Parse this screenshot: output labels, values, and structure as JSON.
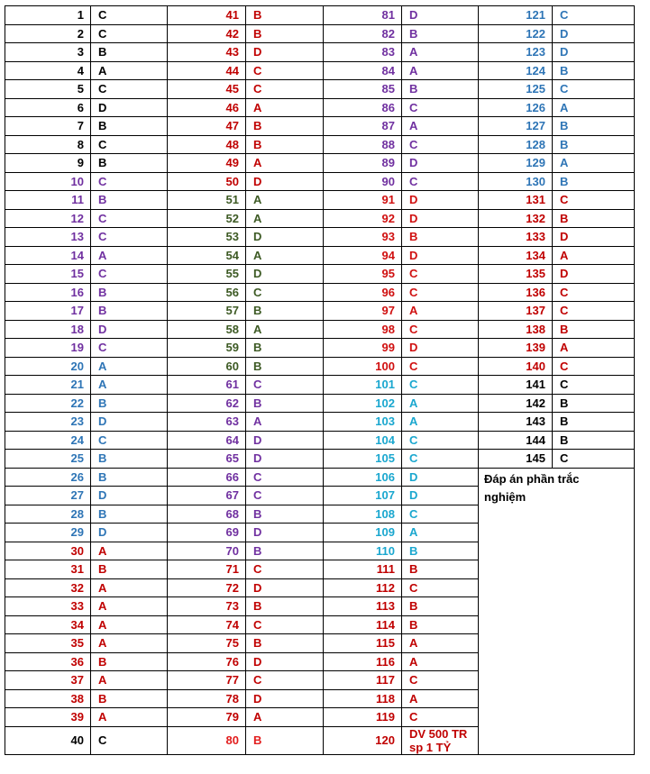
{
  "columns": [
    {
      "groups": [
        {
          "color": "#000000",
          "items": [
            [
              1,
              "C"
            ],
            [
              2,
              "C"
            ],
            [
              3,
              "B"
            ],
            [
              4,
              "A"
            ],
            [
              5,
              "C"
            ],
            [
              6,
              "D"
            ],
            [
              7,
              "B"
            ],
            [
              8,
              "C"
            ],
            [
              9,
              "B"
            ]
          ]
        },
        {
          "color": "#7030a0",
          "items": [
            [
              10,
              "C"
            ],
            [
              11,
              "B"
            ],
            [
              12,
              "C"
            ],
            [
              13,
              "C"
            ],
            [
              14,
              "A"
            ],
            [
              15,
              "C"
            ],
            [
              16,
              "B"
            ],
            [
              17,
              "B"
            ],
            [
              18,
              "D"
            ],
            [
              19,
              "C"
            ]
          ]
        },
        {
          "color": "#2e75b6",
          "items": [
            [
              20,
              "A"
            ],
            [
              21,
              "A"
            ],
            [
              22,
              "B"
            ],
            [
              23,
              "D"
            ],
            [
              24,
              "C"
            ],
            [
              25,
              "B"
            ],
            [
              26,
              "B"
            ],
            [
              27,
              "D"
            ],
            [
              28,
              "B"
            ],
            [
              29,
              "D"
            ]
          ]
        },
        {
          "color": "#c00000",
          "items": [
            [
              30,
              "A"
            ],
            [
              31,
              "B"
            ],
            [
              32,
              "A"
            ],
            [
              33,
              "A"
            ],
            [
              34,
              "A"
            ],
            [
              35,
              "A"
            ],
            [
              36,
              "B"
            ],
            [
              37,
              "A"
            ],
            [
              38,
              "B"
            ],
            [
              39,
              "A"
            ]
          ]
        },
        {
          "color": "#000000",
          "items": [
            [
              40,
              "C"
            ]
          ]
        }
      ]
    },
    {
      "groups": [
        {
          "color": "#c00000",
          "items": [
            [
              41,
              "B"
            ],
            [
              42,
              "B"
            ],
            [
              43,
              "D"
            ],
            [
              44,
              "C"
            ],
            [
              45,
              "C"
            ],
            [
              46,
              "A"
            ],
            [
              47,
              "B"
            ],
            [
              48,
              "B"
            ],
            [
              49,
              "A"
            ],
            [
              50,
              "D"
            ]
          ]
        },
        {
          "color": "#3d5a24",
          "items": [
            [
              51,
              "A"
            ],
            [
              52,
              "A"
            ],
            [
              53,
              "D"
            ],
            [
              54,
              "A"
            ],
            [
              55,
              "D"
            ],
            [
              56,
              "C"
            ],
            [
              57,
              "B"
            ],
            [
              58,
              "A"
            ],
            [
              59,
              "B"
            ],
            [
              60,
              "B"
            ]
          ]
        },
        {
          "color": "#7030a0",
          "items": [
            [
              61,
              "C"
            ],
            [
              62,
              "B"
            ],
            [
              63,
              "A"
            ],
            [
              64,
              "D"
            ],
            [
              65,
              "D"
            ],
            [
              66,
              "C"
            ],
            [
              67,
              "C"
            ],
            [
              68,
              "B"
            ],
            [
              69,
              "D"
            ],
            [
              70,
              "B"
            ]
          ]
        },
        {
          "color": "#c00000",
          "items": [
            [
              71,
              "C"
            ],
            [
              72,
              "D"
            ],
            [
              73,
              "B"
            ],
            [
              74,
              "C"
            ],
            [
              75,
              "B"
            ],
            [
              76,
              "D"
            ],
            [
              77,
              "C"
            ],
            [
              78,
              "D"
            ],
            [
              79,
              "A"
            ]
          ]
        },
        {
          "color": "#e21d1d",
          "items": [
            [
              80,
              "B"
            ]
          ]
        }
      ]
    },
    {
      "groups": [
        {
          "color": "#7030a0",
          "items": [
            [
              81,
              "D"
            ],
            [
              82,
              "B"
            ],
            [
              83,
              "A"
            ],
            [
              84,
              "A"
            ],
            [
              85,
              "B"
            ],
            [
              86,
              "C"
            ],
            [
              87,
              "A"
            ],
            [
              88,
              "C"
            ],
            [
              89,
              "D"
            ],
            [
              90,
              "C"
            ]
          ]
        },
        {
          "color": "#d01010",
          "items": [
            [
              91,
              "D"
            ],
            [
              92,
              "D"
            ],
            [
              93,
              "B"
            ],
            [
              94,
              "D"
            ],
            [
              95,
              "C"
            ],
            [
              96,
              "C"
            ],
            [
              97,
              "A"
            ],
            [
              98,
              "C"
            ],
            [
              99,
              "D"
            ],
            [
              100,
              "C"
            ]
          ]
        },
        {
          "color": "#1aa7cf",
          "items": [
            [
              101,
              "C"
            ],
            [
              102,
              "A"
            ],
            [
              103,
              "A"
            ],
            [
              104,
              "C"
            ],
            [
              105,
              "C"
            ],
            [
              106,
              "D"
            ],
            [
              107,
              "D"
            ],
            [
              108,
              "C"
            ],
            [
              109,
              "A"
            ],
            [
              110,
              "B"
            ]
          ]
        },
        {
          "color": "#c00000",
          "items": [
            [
              111,
              "B"
            ],
            [
              112,
              "C"
            ],
            [
              113,
              "B"
            ],
            [
              114,
              "B"
            ],
            [
              115,
              "A"
            ],
            [
              116,
              "A"
            ],
            [
              117,
              "C"
            ],
            [
              118,
              "A"
            ],
            [
              119,
              "C"
            ],
            [
              120,
              "DV 500 TR sp 1 TỶ"
            ]
          ]
        }
      ]
    },
    {
      "groups": [
        {
          "color": "#2e75b6",
          "items": [
            [
              121,
              "C"
            ],
            [
              122,
              "D"
            ],
            [
              123,
              "D"
            ],
            [
              124,
              "B"
            ],
            [
              125,
              "C"
            ],
            [
              126,
              "A"
            ],
            [
              127,
              "B"
            ],
            [
              128,
              "B"
            ],
            [
              129,
              "A"
            ],
            [
              130,
              "B"
            ]
          ]
        },
        {
          "color": "#c00000",
          "items": [
            [
              131,
              "C"
            ],
            [
              132,
              "B"
            ],
            [
              133,
              "D"
            ],
            [
              134,
              "A"
            ],
            [
              135,
              "D"
            ],
            [
              136,
              "C"
            ],
            [
              137,
              "C"
            ],
            [
              138,
              "B"
            ],
            [
              139,
              "A"
            ],
            [
              140,
              "C"
            ]
          ]
        },
        {
          "color": "#000000",
          "items": [
            [
              141,
              "C"
            ],
            [
              142,
              "B"
            ],
            [
              143,
              "B"
            ],
            [
              144,
              "B"
            ],
            [
              145,
              "C"
            ]
          ]
        }
      ]
    }
  ],
  "note": "Đáp án phần trắc nghiệm"
}
